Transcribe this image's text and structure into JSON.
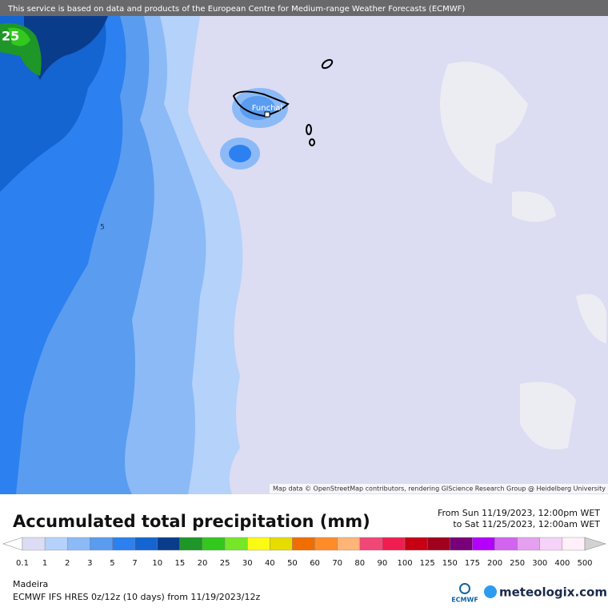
{
  "banner": "This service is based on data and products of the European Centre for Medium-range Weather Forecasts (ECMWF)",
  "map": {
    "labels": [
      "25",
      "5",
      "Funchal"
    ],
    "attribution": "Map data © OpenStreetMap contributors, rendering GIScience Research Group @ Heidelberg University"
  },
  "footer": {
    "title": "Accumulated total precipitation (mm)",
    "from": "From Sun 11/19/2023, 12:00pm WET",
    "to": "to Sat 11/25/2023, 12:00am WET",
    "region": "Madeira",
    "model": "ECMWF IFS HRES 0z/12z (10 days) from  11/19/2023/12z",
    "ecmwf": "ECMWF",
    "brand": "meteologix.com"
  },
  "legend": {
    "labels": [
      "0.1",
      "1",
      "2",
      "3",
      "5",
      "7",
      "10",
      "15",
      "20",
      "25",
      "30",
      "40",
      "50",
      "60",
      "70",
      "80",
      "90",
      "100",
      "125",
      "150",
      "175",
      "200",
      "250",
      "300",
      "400",
      "500"
    ],
    "colors": [
      "#dcdcf5",
      "#b4d2fa",
      "#8cbaf7",
      "#5a9cf0",
      "#2c80f0",
      "#1464d2",
      "#0a3c8c",
      "#1e9628",
      "#32c81e",
      "#78e628",
      "#fafa14",
      "#e6dc00",
      "#f06e00",
      "#ff8c28",
      "#ffb478",
      "#f04678",
      "#f01e50",
      "#c80014",
      "#a0001e",
      "#780078",
      "#b400ff",
      "#d264f0",
      "#e6a0f0",
      "#f5d2f8",
      "#fff0fa"
    ],
    "below": "#ffffff",
    "above": "#d2d2d2"
  }
}
